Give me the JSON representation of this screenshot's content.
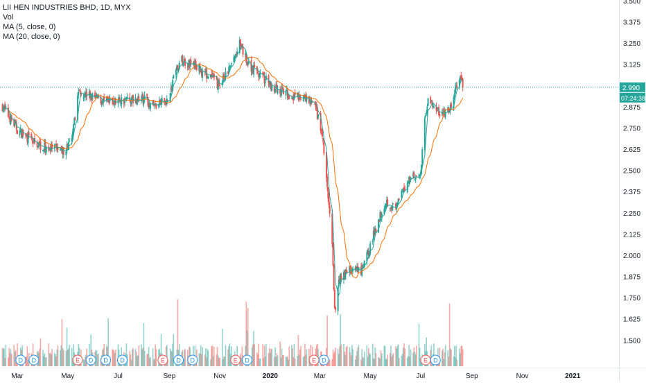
{
  "legend": {
    "title": "LII HEN INDUSTRIES BHD, 1D, MYX",
    "vol": "Vol",
    "ma5": "MA (5, close, 0)",
    "ma20": "MA (20, close, 0)"
  },
  "price_label": {
    "value": "2.990",
    "countdown": "07:24:38"
  },
  "colors": {
    "up": "#26a69a",
    "down": "#ef5350",
    "ma5": "#26a69a",
    "ma20": "#ff6d00",
    "line": "#26a69a",
    "label": "#26a69a"
  },
  "chart_data": {
    "type": "candlestick",
    "y_ticks": [
      "1.500",
      "1.625",
      "1.750",
      "1.875",
      "2.000",
      "2.125",
      "2.250",
      "2.375",
      "2.500",
      "2.625",
      "2.750",
      "2.875",
      "3.000",
      "3.125",
      "3.250",
      "3.375",
      "3.500"
    ],
    "x_ticks": [
      "Mar",
      "May",
      "Jul",
      "Sep",
      "Nov",
      "2020",
      "Mar",
      "May",
      "Jul",
      "Sep",
      "Nov",
      "2021"
    ],
    "x_tick_dates": [
      "2019-03-01",
      "2019-05-01",
      "2019-07-01",
      "2019-09-01",
      "2019-11-01",
      "2020-01-01",
      "2020-03-01",
      "2020-05-01",
      "2020-07-01",
      "2020-09-01",
      "2020-11-01",
      "2021-01-01"
    ],
    "x_range": [
      "2019-02-08",
      "2021-02-26"
    ],
    "ylim": [
      1.44,
      3.5
    ],
    "last_price": 2.99,
    "events": [
      {
        "date": "2019-03-05",
        "label": "D"
      },
      {
        "date": "2019-03-21",
        "label": "D"
      },
      {
        "date": "2019-05-13",
        "label": "E"
      },
      {
        "date": "2019-05-29",
        "label": "D"
      },
      {
        "date": "2019-06-16",
        "label": "D"
      },
      {
        "date": "2019-07-06",
        "label": "D"
      },
      {
        "date": "2019-08-24",
        "label": "E"
      },
      {
        "date": "2019-09-12",
        "label": "D"
      },
      {
        "date": "2019-09-29",
        "label": "D"
      },
      {
        "date": "2019-11-20",
        "label": "E"
      },
      {
        "date": "2019-12-04",
        "label": "D"
      },
      {
        "date": "2020-02-23",
        "label": "E"
      },
      {
        "date": "2020-03-06",
        "label": "D"
      },
      {
        "date": "2020-07-07",
        "label": "E"
      },
      {
        "date": "2020-07-19",
        "label": "D"
      }
    ],
    "anchors": [
      [
        "2019-02-11",
        2.88
      ],
      [
        "2019-03-01",
        2.74
      ],
      [
        "2019-03-22",
        2.66
      ],
      [
        "2019-04-10",
        2.63
      ],
      [
        "2019-04-25",
        2.61
      ],
      [
        "2019-05-06",
        2.67
      ],
      [
        "2019-05-14",
        2.97
      ],
      [
        "2019-06-01",
        2.93
      ],
      [
        "2019-06-20",
        2.9
      ],
      [
        "2019-07-10",
        2.92
      ],
      [
        "2019-08-01",
        2.92
      ],
      [
        "2019-08-15",
        2.88
      ],
      [
        "2019-09-01",
        2.92
      ],
      [
        "2019-09-06",
        3.05
      ],
      [
        "2019-09-15",
        3.15
      ],
      [
        "2019-10-01",
        3.12
      ],
      [
        "2019-10-20",
        3.05
      ],
      [
        "2019-11-01",
        3.0
      ],
      [
        "2019-11-15",
        3.12
      ],
      [
        "2019-11-25",
        3.24
      ],
      [
        "2019-12-05",
        3.13
      ],
      [
        "2019-12-20",
        3.06
      ],
      [
        "2020-01-05",
        2.99
      ],
      [
        "2020-01-20",
        2.95
      ],
      [
        "2020-02-05",
        2.93
      ],
      [
        "2020-02-20",
        2.9
      ],
      [
        "2020-02-26",
        2.85
      ],
      [
        "2020-03-04",
        2.7
      ],
      [
        "2020-03-10",
        2.4
      ],
      [
        "2020-03-16",
        2.05
      ],
      [
        "2020-03-19",
        1.66
      ],
      [
        "2020-03-24",
        1.86
      ],
      [
        "2020-04-05",
        1.92
      ],
      [
        "2020-04-20",
        1.9
      ],
      [
        "2020-05-01",
        2.05
      ],
      [
        "2020-05-10",
        2.2
      ],
      [
        "2020-05-20",
        2.32
      ],
      [
        "2020-06-01",
        2.27
      ],
      [
        "2020-06-10",
        2.38
      ],
      [
        "2020-06-20",
        2.48
      ],
      [
        "2020-07-01",
        2.46
      ],
      [
        "2020-07-05",
        2.78
      ],
      [
        "2020-07-10",
        2.92
      ],
      [
        "2020-07-20",
        2.85
      ],
      [
        "2020-07-28",
        2.83
      ],
      [
        "2020-08-05",
        2.85
      ],
      [
        "2020-08-12",
        2.97
      ],
      [
        "2020-08-17",
        3.05
      ],
      [
        "2020-08-21",
        2.99
      ]
    ]
  }
}
